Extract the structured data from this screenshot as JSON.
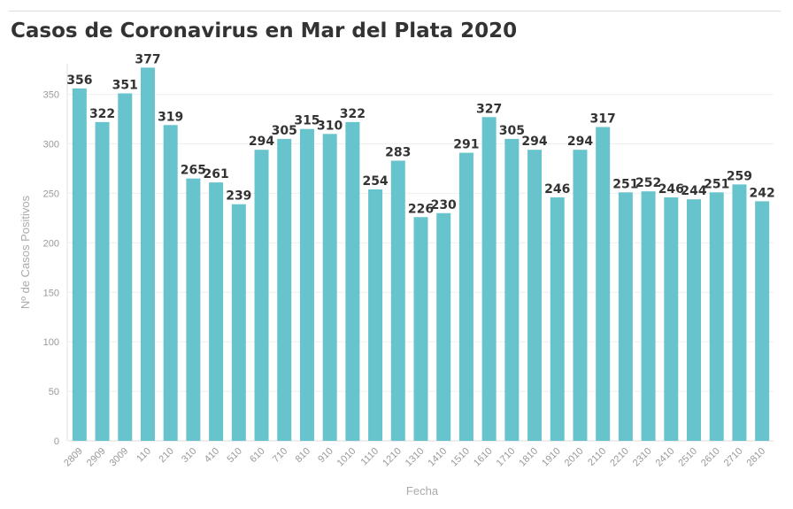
{
  "chart_data": {
    "type": "bar",
    "title": "Casos de Coronavirus en Mar del Plata 2020",
    "xlabel": "Fecha",
    "ylabel": "Nº de Casos Positivos",
    "ylim": [
      0,
      380
    ],
    "yticks": [
      0,
      50,
      100,
      150,
      200,
      250,
      300,
      350
    ],
    "grid": true,
    "legend": "none",
    "bar_color": "#67c4cc",
    "categories": [
      "2809",
      "2909",
      "3009",
      "110",
      "210",
      "310",
      "410",
      "510",
      "610",
      "710",
      "810",
      "910",
      "1010",
      "1110",
      "1210",
      "1310",
      "1410",
      "1510",
      "1610",
      "1710",
      "1810",
      "1910",
      "2010",
      "2110",
      "2210",
      "2310",
      "2410",
      "2510",
      "2610",
      "2710",
      "2810"
    ],
    "values": [
      356,
      322,
      351,
      377,
      319,
      265,
      261,
      239,
      294,
      305,
      315,
      310,
      322,
      254,
      283,
      226,
      230,
      291,
      327,
      305,
      294,
      246,
      294,
      317,
      251,
      252,
      246,
      244,
      251,
      259,
      242
    ]
  }
}
